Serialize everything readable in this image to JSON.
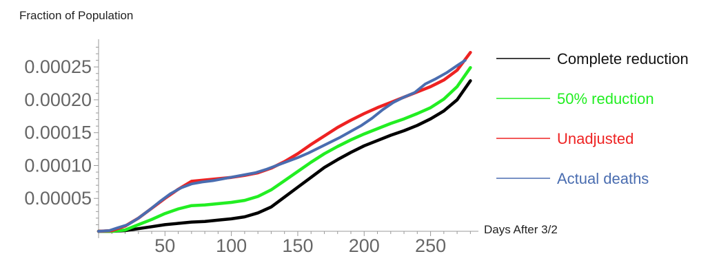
{
  "chart_data": {
    "type": "line",
    "xlabel": "Days After 3/2",
    "ylabel": "Fraction of Population",
    "xlim": [
      0,
      285
    ],
    "ylim": [
      0,
      0.00029
    ],
    "x_ticks": [
      {
        "value": 50,
        "label": "50"
      },
      {
        "value": 100,
        "label": "100"
      },
      {
        "value": 150,
        "label": "150"
      },
      {
        "value": 200,
        "label": "200"
      },
      {
        "value": 250,
        "label": "250"
      }
    ],
    "y_ticks": [
      {
        "value": 5e-05,
        "label": "0.00005"
      },
      {
        "value": 0.0001,
        "label": "0.00010"
      },
      {
        "value": 0.00015,
        "label": "0.00015"
      },
      {
        "value": 0.0002,
        "label": "0.00020"
      },
      {
        "value": 0.00025,
        "label": "0.00025"
      }
    ],
    "legend_position": "right",
    "series": [
      {
        "name": "Complete reduction",
        "color": "#000000",
        "points": [
          [
            0,
            0
          ],
          [
            10,
            0
          ],
          [
            20,
            1e-06
          ],
          [
            30,
            4e-06
          ],
          [
            40,
            7e-06
          ],
          [
            50,
            1e-05
          ],
          [
            60,
            1.2e-05
          ],
          [
            70,
            1.4e-05
          ],
          [
            80,
            1.5e-05
          ],
          [
            90,
            1.7e-05
          ],
          [
            100,
            1.9e-05
          ],
          [
            110,
            2.2e-05
          ],
          [
            120,
            2.8e-05
          ],
          [
            130,
            3.7e-05
          ],
          [
            140,
            5.2e-05
          ],
          [
            150,
            6.7e-05
          ],
          [
            160,
            8.2e-05
          ],
          [
            170,
            9.7e-05
          ],
          [
            180,
            0.000109
          ],
          [
            190,
            0.00012
          ],
          [
            200,
            0.00013
          ],
          [
            210,
            0.000138
          ],
          [
            220,
            0.000146
          ],
          [
            230,
            0.000153
          ],
          [
            240,
            0.000161
          ],
          [
            250,
            0.000171
          ],
          [
            260,
            0.000183
          ],
          [
            270,
            0.0002
          ],
          [
            280,
            0.000229
          ]
        ]
      },
      {
        "name": "50% reduction",
        "color": "#22ee22",
        "points": [
          [
            0,
            0
          ],
          [
            10,
            0
          ],
          [
            20,
            2e-06
          ],
          [
            30,
            1e-05
          ],
          [
            40,
            1.8e-05
          ],
          [
            50,
            2.7e-05
          ],
          [
            60,
            3.4e-05
          ],
          [
            70,
            3.9e-05
          ],
          [
            80,
            4e-05
          ],
          [
            90,
            4.2e-05
          ],
          [
            100,
            4.4e-05
          ],
          [
            110,
            4.7e-05
          ],
          [
            120,
            5.3e-05
          ],
          [
            130,
            6.3e-05
          ],
          [
            140,
            7.7e-05
          ],
          [
            150,
            9.1e-05
          ],
          [
            160,
            0.000105
          ],
          [
            170,
            0.000118
          ],
          [
            180,
            0.000129
          ],
          [
            190,
            0.000139
          ],
          [
            200,
            0.000148
          ],
          [
            210,
            0.000156
          ],
          [
            220,
            0.000164
          ],
          [
            230,
            0.000171
          ],
          [
            240,
            0.000179
          ],
          [
            250,
            0.000188
          ],
          [
            260,
            0.000201
          ],
          [
            270,
            0.00022
          ],
          [
            280,
            0.000249
          ]
        ]
      },
      {
        "name": "Unadjusted",
        "color": "#ee2222",
        "points": [
          [
            0,
            0
          ],
          [
            10,
            1e-06
          ],
          [
            20,
            8e-06
          ],
          [
            30,
            2e-05
          ],
          [
            40,
            3.5e-05
          ],
          [
            50,
            5e-05
          ],
          [
            60,
            6.4e-05
          ],
          [
            70,
            7.6e-05
          ],
          [
            80,
            7.8e-05
          ],
          [
            90,
            8e-05
          ],
          [
            100,
            8.2e-05
          ],
          [
            110,
            8.5e-05
          ],
          [
            120,
            8.9e-05
          ],
          [
            130,
            9.6e-05
          ],
          [
            140,
            0.000106
          ],
          [
            150,
            0.000118
          ],
          [
            160,
            0.000132
          ],
          [
            170,
            0.000145
          ],
          [
            180,
            0.000158
          ],
          [
            190,
            0.000169
          ],
          [
            200,
            0.000179
          ],
          [
            210,
            0.000188
          ],
          [
            220,
            0.000196
          ],
          [
            230,
            0.000204
          ],
          [
            240,
            0.000212
          ],
          [
            250,
            0.00022
          ],
          [
            260,
            0.00023
          ],
          [
            270,
            0.000245
          ],
          [
            280,
            0.000272
          ]
        ]
      },
      {
        "name": "Actual deaths",
        "color": "#4a6db0",
        "points": [
          [
            0,
            0
          ],
          [
            8,
            1e-06
          ],
          [
            14,
            5e-06
          ],
          [
            22,
            1e-05
          ],
          [
            30,
            2e-05
          ],
          [
            38,
            3.2e-05
          ],
          [
            46,
            4.5e-05
          ],
          [
            54,
            5.7e-05
          ],
          [
            62,
            6.6e-05
          ],
          [
            70,
            7.2e-05
          ],
          [
            78,
            7.5e-05
          ],
          [
            86,
            7.7e-05
          ],
          [
            94,
            8e-05
          ],
          [
            102,
            8.3e-05
          ],
          [
            110,
            8.6e-05
          ],
          [
            118,
            8.9e-05
          ],
          [
            126,
            9.4e-05
          ],
          [
            134,
            0.0001
          ],
          [
            142,
            0.000106
          ],
          [
            150,
            0.000112
          ],
          [
            158,
            0.000119
          ],
          [
            166,
            0.000127
          ],
          [
            174,
            0.000135
          ],
          [
            182,
            0.000143
          ],
          [
            190,
            0.000152
          ],
          [
            198,
            0.000161
          ],
          [
            206,
            0.000172
          ],
          [
            214,
            0.000185
          ],
          [
            222,
            0.000196
          ],
          [
            230,
            0.000204
          ],
          [
            238,
            0.000211
          ],
          [
            246,
            0.000224
          ],
          [
            254,
            0.000232
          ],
          [
            262,
            0.000241
          ],
          [
            270,
            0.000252
          ],
          [
            276,
            0.00026
          ]
        ]
      }
    ]
  }
}
